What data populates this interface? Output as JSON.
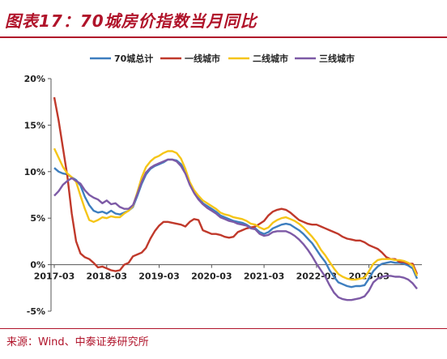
{
  "figure_title": "图表17：70城房价指数当月同比",
  "source_note": "来源：Wind、中泰证券研究所",
  "chart_data": {
    "type": "line",
    "x_tick_labels": [
      "2017-03",
      "2018-03",
      "2019-03",
      "2020-03",
      "2021-03",
      "2022-03",
      "2023-03"
    ],
    "y_tick_labels": [
      "20%",
      "15%",
      "10%",
      "5%",
      "0%",
      "-5%"
    ],
    "y_ticks": [
      20,
      15,
      10,
      5,
      0,
      -5
    ],
    "ylim": [
      -5,
      20
    ],
    "x_start": "2017-03",
    "x_end": "2024-01",
    "legend_position": "top",
    "series": [
      {
        "name": "70城总计",
        "color": "#3d7ebf",
        "values": [
          10.4,
          10.0,
          9.8,
          9.7,
          9.4,
          9.1,
          8.5,
          7.3,
          6.4,
          5.8,
          5.6,
          5.7,
          5.5,
          5.8,
          5.5,
          5.4,
          5.6,
          5.8,
          6.2,
          7.4,
          8.7,
          9.7,
          10.3,
          10.6,
          10.8,
          11.0,
          11.3,
          11.3,
          11.2,
          10.8,
          10.0,
          8.8,
          7.9,
          7.2,
          6.6,
          6.3,
          6.0,
          5.7,
          5.3,
          5.1,
          4.9,
          4.7,
          4.6,
          4.5,
          4.3,
          4.0,
          3.9,
          3.5,
          3.3,
          3.5,
          3.9,
          4.1,
          4.3,
          4.4,
          4.3,
          4.0,
          3.7,
          3.3,
          2.8,
          2.3,
          1.6,
          0.9,
          0.3,
          -0.6,
          -1.3,
          -1.9,
          -2.1,
          -2.3,
          -2.4,
          -2.3,
          -2.3,
          -2.2,
          -1.5,
          -0.7,
          -0.2,
          0.1,
          0.2,
          0.3,
          0.2,
          0.2,
          0.1,
          -0.1,
          -0.4,
          -1.5
        ]
      },
      {
        "name": "一线城市",
        "color": "#c0392b",
        "values": [
          18.0,
          15.5,
          12.5,
          9.5,
          5.5,
          2.5,
          1.2,
          0.8,
          0.6,
          0.2,
          -0.3,
          -0.2,
          -0.4,
          -0.6,
          -0.7,
          -0.6,
          0.0,
          0.2,
          0.9,
          1.1,
          1.3,
          1.8,
          2.8,
          3.6,
          4.2,
          4.6,
          4.6,
          4.5,
          4.4,
          4.3,
          4.1,
          4.6,
          4.9,
          4.8,
          3.7,
          3.5,
          3.3,
          3.3,
          3.2,
          3.0,
          2.9,
          3.0,
          3.5,
          3.7,
          3.9,
          4.0,
          4.1,
          4.4,
          4.7,
          5.3,
          5.7,
          5.9,
          6.0,
          5.9,
          5.6,
          5.2,
          4.8,
          4.6,
          4.4,
          4.3,
          4.3,
          4.1,
          3.9,
          3.7,
          3.5,
          3.3,
          3.0,
          2.8,
          2.7,
          2.6,
          2.6,
          2.4,
          2.1,
          1.9,
          1.7,
          1.3,
          0.8,
          0.6,
          0.6,
          0.3,
          0.3,
          0.1,
          0.1,
          -1.0
        ]
      },
      {
        "name": "二线城市",
        "color": "#f5c518",
        "values": [
          12.5,
          11.5,
          10.5,
          9.8,
          9.4,
          8.9,
          7.4,
          6.0,
          4.8,
          4.6,
          4.8,
          5.1,
          5.0,
          5.2,
          5.1,
          5.1,
          5.5,
          5.8,
          6.3,
          7.8,
          9.4,
          10.5,
          11.1,
          11.5,
          11.7,
          12.0,
          12.2,
          12.2,
          12.0,
          11.4,
          10.3,
          8.9,
          8.0,
          7.4,
          6.9,
          6.6,
          6.3,
          6.0,
          5.6,
          5.4,
          5.3,
          5.1,
          5.0,
          4.9,
          4.7,
          4.4,
          4.3,
          4.0,
          3.8,
          4.0,
          4.5,
          4.8,
          5.0,
          5.1,
          4.9,
          4.7,
          4.4,
          4.0,
          3.5,
          3.0,
          2.4,
          1.6,
          1.0,
          0.3,
          -0.4,
          -1.0,
          -1.3,
          -1.5,
          -1.6,
          -1.6,
          -1.5,
          -1.4,
          -0.7,
          0.1,
          0.5,
          0.6,
          0.6,
          0.6,
          0.5,
          0.5,
          0.4,
          0.2,
          -0.1,
          -1.2
        ]
      },
      {
        "name": "三线城市",
        "color": "#7d5aa6",
        "values": [
          7.4,
          7.9,
          8.6,
          9.0,
          9.3,
          9.0,
          8.7,
          8.0,
          7.5,
          7.2,
          7.0,
          6.6,
          6.9,
          6.5,
          6.6,
          6.2,
          6.0,
          6.0,
          6.4,
          7.6,
          8.9,
          9.9,
          10.4,
          10.7,
          10.9,
          11.1,
          11.3,
          11.3,
          11.1,
          10.6,
          9.8,
          8.6,
          7.7,
          7.0,
          6.5,
          6.1,
          5.8,
          5.5,
          5.1,
          4.9,
          4.7,
          4.6,
          4.4,
          4.3,
          4.2,
          3.9,
          3.8,
          3.3,
          3.1,
          3.2,
          3.5,
          3.6,
          3.6,
          3.6,
          3.4,
          3.1,
          2.7,
          2.2,
          1.6,
          0.9,
          0.1,
          -0.6,
          -1.3,
          -2.2,
          -3.0,
          -3.5,
          -3.7,
          -3.8,
          -3.8,
          -3.7,
          -3.6,
          -3.4,
          -2.8,
          -1.9,
          -1.5,
          -1.3,
          -1.2,
          -1.2,
          -1.3,
          -1.3,
          -1.4,
          -1.6,
          -2.0,
          -2.6
        ]
      }
    ]
  }
}
